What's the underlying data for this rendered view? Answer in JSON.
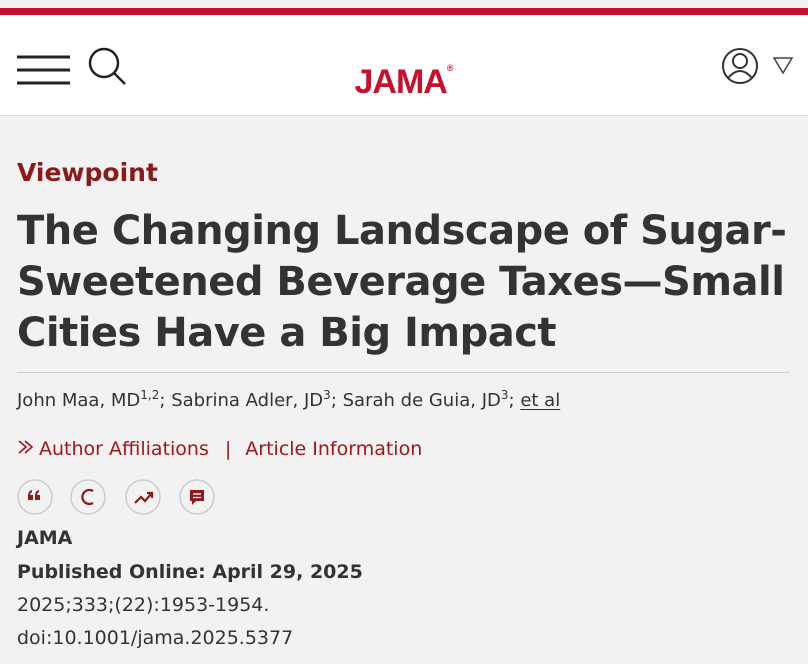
{
  "header": {
    "logo": "JAMA",
    "logo_mark": "®"
  },
  "article": {
    "label": "Viewpoint",
    "title": "The Changing Landscape of Sugar-Sweetened Beverage Taxes—Small Cities Have a Big Impact",
    "authors": [
      {
        "name": "John Maa, MD",
        "affiliations": "1,2"
      },
      {
        "name": "Sabrina Adler, JD",
        "affiliations": "3"
      },
      {
        "name": "Sarah de Guia, JD",
        "affiliations": "3"
      }
    ],
    "author_separator": ";",
    "more_authors": "et al",
    "links": [
      "Author Affiliations",
      "Article Information"
    ],
    "link_separator": "|",
    "journal": "JAMA",
    "published_label": "Published Online:",
    "published_date": "April 29, 2025",
    "citation": "2025;333;(22):1953-1954.",
    "doi": "doi:10.1001/jama.2025.5377"
  }
}
